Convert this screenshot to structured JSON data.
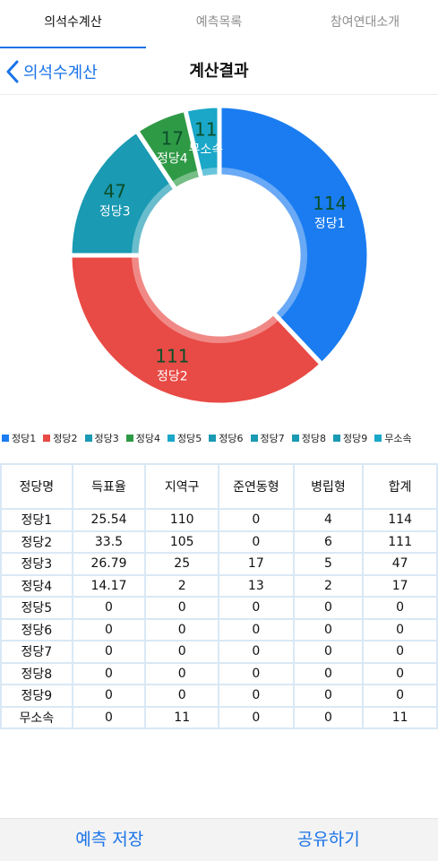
{
  "tabs": [
    {
      "label": "의석수계산",
      "active": true
    },
    {
      "label": "예측목록",
      "active": false
    },
    {
      "label": "참여연대소개",
      "active": false
    }
  ],
  "navbar": {
    "back_label": "의석수계산",
    "title": "계산결과"
  },
  "colors": {
    "accent": "#1a73e8",
    "party1": "#1a7cf0",
    "party2": "#e84a45",
    "party3": "#1a9ab3",
    "party4": "#2f9a46",
    "party5": "#1aa7c8"
  },
  "chart_data": {
    "type": "pie",
    "donut": true,
    "slices": [
      {
        "name": "정당1",
        "value": 114,
        "color": "#1a7cf0",
        "label_color": "#0b4f2a"
      },
      {
        "name": "정당2",
        "value": 111,
        "color": "#e84a45",
        "label_color": "#0b4f2a"
      },
      {
        "name": "정당3",
        "value": 47,
        "color": "#1a9ab3",
        "label_color": "#0b4f2a"
      },
      {
        "name": "정당4",
        "value": 17,
        "color": "#2f9a46",
        "label_color": "#0b4f2a"
      },
      {
        "name": "무소속",
        "value": 11,
        "color": "#1aa7c8",
        "label_color": "#0b4f2a"
      }
    ],
    "legend": [
      {
        "name": "정당1",
        "color": "#1a7cf0"
      },
      {
        "name": "정당2",
        "color": "#e84a45"
      },
      {
        "name": "정당3",
        "color": "#1a9ab3"
      },
      {
        "name": "정당4",
        "color": "#2f9a46"
      },
      {
        "name": "정당5",
        "color": "#1aa7c8"
      },
      {
        "name": "정당6",
        "color": "#1a9ab3"
      },
      {
        "name": "정당7",
        "color": "#1a9ab3"
      },
      {
        "name": "정당8",
        "color": "#1a9ab3"
      },
      {
        "name": "정당9",
        "color": "#1a9ab3"
      },
      {
        "name": "무소속",
        "color": "#1aa7c8"
      }
    ]
  },
  "table": {
    "headers": [
      "정당명",
      "득표율",
      "지역구",
      "준연동형",
      "병립형",
      "합계"
    ],
    "rows": [
      [
        "정당1",
        "25.54",
        "110",
        "0",
        "4",
        "114"
      ],
      [
        "정당2",
        "33.5",
        "105",
        "0",
        "6",
        "111"
      ],
      [
        "정당3",
        "26.79",
        "25",
        "17",
        "5",
        "47"
      ],
      [
        "정당4",
        "14.17",
        "2",
        "13",
        "2",
        "17"
      ],
      [
        "정당5",
        "0",
        "0",
        "0",
        "0",
        "0"
      ],
      [
        "정당6",
        "0",
        "0",
        "0",
        "0",
        "0"
      ],
      [
        "정당7",
        "0",
        "0",
        "0",
        "0",
        "0"
      ],
      [
        "정당8",
        "0",
        "0",
        "0",
        "0",
        "0"
      ],
      [
        "정당9",
        "0",
        "0",
        "0",
        "0",
        "0"
      ],
      [
        "무소속",
        "0",
        "11",
        "0",
        "0",
        "11"
      ]
    ]
  },
  "bottom": {
    "save_label": "예측 저장",
    "share_label": "공유하기"
  }
}
